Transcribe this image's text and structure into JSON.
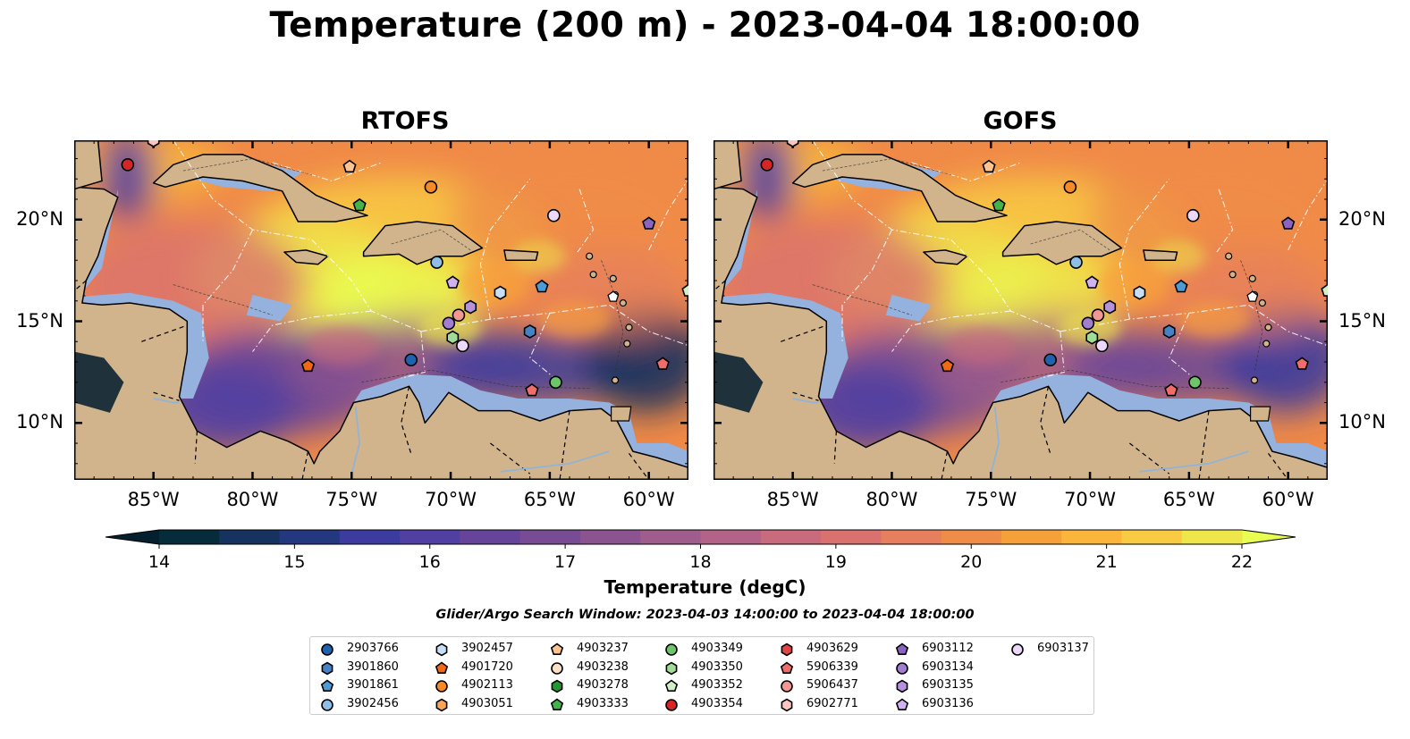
{
  "title": "Temperature (200 m) - 2023-04-04 18:00:00",
  "panels": [
    {
      "title": "RTOFS",
      "variant": "rtofs"
    },
    {
      "title": "GOFS",
      "variant": "gofs"
    }
  ],
  "map": {
    "lon_range": [
      -89,
      -58
    ],
    "lat_range": [
      7.2,
      23.9
    ],
    "lon_ticks": [
      {
        "value": -85,
        "label": "85°W"
      },
      {
        "value": -80,
        "label": "80°W"
      },
      {
        "value": -75,
        "label": "75°W"
      },
      {
        "value": -70,
        "label": "70°W"
      },
      {
        "value": -65,
        "label": "65°W"
      },
      {
        "value": -60,
        "label": "60°W"
      }
    ],
    "lat_ticks": [
      {
        "value": 20,
        "label": "20°N"
      },
      {
        "value": 15,
        "label": "15°N"
      },
      {
        "value": 10,
        "label": "10°N"
      }
    ],
    "land_color": "#d2b48c",
    "shelf_color": "#95b2de",
    "deep_color": "#0b2433"
  },
  "colorbar": {
    "label": "Temperature (degC)",
    "min": 14,
    "max": 22,
    "ticks": [
      14,
      15,
      16,
      17,
      18,
      19,
      20,
      21,
      22
    ],
    "tick_labels": [
      "14",
      "15",
      "16",
      "17",
      "18",
      "19",
      "20",
      "21",
      "22"
    ],
    "colors": [
      "#062b3b",
      "#16325e",
      "#243880",
      "#3b3c9e",
      "#513fa2",
      "#664499",
      "#784c94",
      "#8b5490",
      "#9e5d8c",
      "#b26387",
      "#c76b7d",
      "#d9726f",
      "#e67f5e",
      "#ef8c47",
      "#f6a03a",
      "#fbb53b",
      "#f8cb42",
      "#eee64a"
    ],
    "under_color": "#04202e",
    "over_color": "#e8ff52"
  },
  "search_window": "Glider/Argo Search Window: 2023-04-03 14:00:00 to 2023-04-04 18:00:00",
  "legend": [
    {
      "id": "2903766",
      "marker": "circle",
      "color": "#1f62ad"
    },
    {
      "id": "3901860",
      "marker": "hexagon",
      "color": "#4683c4"
    },
    {
      "id": "3901861",
      "marker": "pentagon",
      "color": "#4e9ad2"
    },
    {
      "id": "3902456",
      "marker": "circle",
      "color": "#8ebde6"
    },
    {
      "id": "3902457",
      "marker": "hexagon",
      "color": "#c7def3"
    },
    {
      "id": "4901720",
      "marker": "pentagon",
      "color": "#f16913"
    },
    {
      "id": "4902113",
      "marker": "circle",
      "color": "#f78a28"
    },
    {
      "id": "4903051",
      "marker": "hexagon",
      "color": "#fba55a"
    },
    {
      "id": "4903237",
      "marker": "pentagon",
      "color": "#fdc48f"
    },
    {
      "id": "4903238",
      "marker": "circle",
      "color": "#fde0c4"
    },
    {
      "id": "4903278",
      "marker": "hexagon",
      "color": "#23962f"
    },
    {
      "id": "4903333",
      "marker": "pentagon",
      "color": "#45b34c"
    },
    {
      "id": "4903349",
      "marker": "circle",
      "color": "#6ec56b"
    },
    {
      "id": "4903350",
      "marker": "hexagon",
      "color": "#a2db95"
    },
    {
      "id": "4903352",
      "marker": "pentagon",
      "color": "#d2efc8"
    },
    {
      "id": "4903354",
      "marker": "circle",
      "color": "#d62527"
    },
    {
      "id": "4903629",
      "marker": "hexagon",
      "color": "#e04545"
    },
    {
      "id": "5906339",
      "marker": "pentagon",
      "color": "#ef6d6b"
    },
    {
      "id": "5906437",
      "marker": "circle",
      "color": "#f49792"
    },
    {
      "id": "6902771",
      "marker": "hexagon",
      "color": "#f9c6c2"
    },
    {
      "id": "6903112",
      "marker": "pentagon",
      "color": "#8a64be"
    },
    {
      "id": "6903134",
      "marker": "circle",
      "color": "#a27ed0"
    },
    {
      "id": "6903135",
      "marker": "hexagon",
      "color": "#b692dd"
    },
    {
      "id": "6903136",
      "marker": "pentagon",
      "color": "#d1b2f0"
    },
    {
      "id": "6903137",
      "marker": "circle",
      "color": "#ecd8fb"
    }
  ],
  "floats": [
    {
      "id": "4903354",
      "lon": -86.3,
      "lat": 22.7
    },
    {
      "id": "4903237",
      "lon": -75.1,
      "lat": 22.6
    },
    {
      "id": "4902113",
      "lon": -71.0,
      "lat": 21.6
    },
    {
      "id": "4903333",
      "lon": -74.6,
      "lat": 20.7
    },
    {
      "id": "6903137",
      "lon": -64.8,
      "lat": 20.2
    },
    {
      "id": "6903112",
      "lon": -60.0,
      "lat": 19.8
    },
    {
      "id": "3902456",
      "lon": -70.7,
      "lat": 17.9
    },
    {
      "id": "6903136",
      "lon": -69.9,
      "lat": 16.9
    },
    {
      "id": "3902457",
      "lon": -67.5,
      "lat": 16.4
    },
    {
      "id": "3901861",
      "lon": -65.4,
      "lat": 16.7
    },
    {
      "id": "6903135",
      "lon": -69.0,
      "lat": 15.7
    },
    {
      "id": "5906437",
      "lon": -69.6,
      "lat": 15.3
    },
    {
      "id": "6903134",
      "lon": -70.1,
      "lat": 14.9
    },
    {
      "id": "3901860",
      "lon": -66.0,
      "lat": 14.5
    },
    {
      "id": "4903350",
      "lon": -69.9,
      "lat": 14.2
    },
    {
      "id": "6903137",
      "lon": -69.4,
      "lat": 13.8
    },
    {
      "id": "2903766",
      "lon": -72.0,
      "lat": 13.1
    },
    {
      "id": "4901720",
      "lon": -77.2,
      "lat": 12.8
    },
    {
      "id": "5906339",
      "lon": -59.3,
      "lat": 12.9
    },
    {
      "id": "4903349",
      "lon": -64.7,
      "lat": 12.0
    },
    {
      "id": "5906339",
      "lon": -65.9,
      "lat": 11.6
    },
    {
      "id": "6902771",
      "lon": -85.0,
      "lat": 23.9
    },
    {
      "id": "4903352",
      "lon": -58.0,
      "lat": 16.5
    }
  ]
}
